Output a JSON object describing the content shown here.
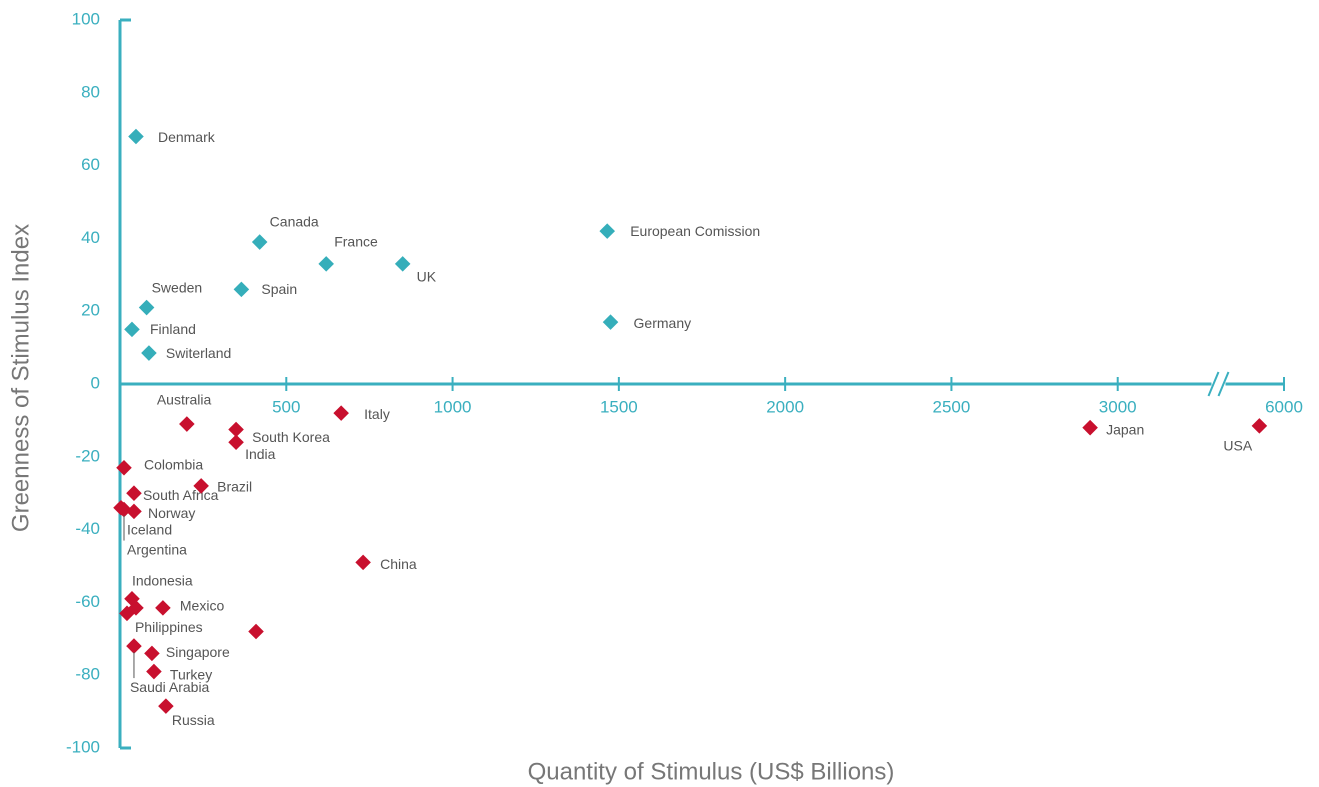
{
  "chart_data": {
    "type": "scatter",
    "x_label": "Quantity of Stimulus (US$ Billions)",
    "y_label": "Greenness of Stimulus Index",
    "xlim": [
      0,
      6000
    ],
    "xbreak": [
      3300,
      5800
    ],
    "xticks": [
      500,
      1000,
      1500,
      2000,
      2500,
      3000,
      6000
    ],
    "ylim": [
      -100,
      100
    ],
    "yticks": [
      -100,
      -80,
      -60,
      -40,
      -20,
      0,
      20,
      40,
      60,
      80,
      100
    ],
    "axis_color": "#3aafbf",
    "series": [
      {
        "color": "#35aeba",
        "labels": [
          "Denmark",
          "Canada",
          "France",
          "UK",
          "European Comission",
          "Spain",
          "Sweden",
          "Finland",
          "Switerland",
          "Germany"
        ],
        "x": [
          48,
          420,
          620,
          850,
          1465,
          365,
          80,
          36,
          87,
          1475
        ],
        "values": [
          68,
          39,
          33,
          33,
          42,
          26,
          21,
          15,
          8.5,
          17
        ]
      },
      {
        "color": "#c8102e",
        "labels": [
          "Australia",
          "Italy",
          "South Korea",
          "India",
          "Japan",
          "USA",
          "Colombia",
          "South Africa",
          "Brazil",
          "Iceland",
          "Argentina",
          "Norway",
          "China",
          "Indonesia",
          "Philippines",
          null,
          "Mexico",
          null,
          "Saudi Arabia",
          "Singapore",
          "Turkey",
          "Russia"
        ],
        "x": [
          201,
          665,
          349,
          349,
          2917,
          5926,
          12,
          42,
          244,
          3,
          12,
          42,
          731,
          36,
          21,
          48,
          129,
          409,
          42,
          96,
          102,
          138
        ],
        "values": [
          -11,
          -8,
          -12.5,
          -16,
          -12,
          -11.5,
          -23,
          -30,
          -28,
          -34,
          -34.5,
          -35,
          -49,
          -59,
          -63,
          -61.5,
          -61.5,
          -68,
          -72,
          -74,
          -79,
          -88.5
        ]
      }
    ]
  }
}
